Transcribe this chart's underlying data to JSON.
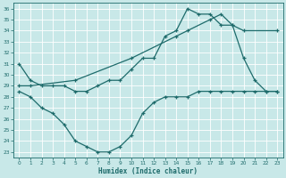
{
  "xlabel": "Humidex (Indice chaleur)",
  "xlim": [
    -0.5,
    23.5
  ],
  "ylim": [
    22.5,
    36.5
  ],
  "yticks": [
    23,
    24,
    25,
    26,
    27,
    28,
    29,
    30,
    31,
    32,
    33,
    34,
    35,
    36
  ],
  "xticks": [
    0,
    1,
    2,
    3,
    4,
    5,
    6,
    7,
    8,
    9,
    10,
    11,
    12,
    13,
    14,
    15,
    16,
    17,
    18,
    19,
    20,
    21,
    22,
    23
  ],
  "bg_color": "#c8e8e8",
  "line_color": "#1e6b6b",
  "grid_color": "#ffffff",
  "line1_x": [
    0,
    1,
    2,
    3,
    4,
    5,
    6,
    7,
    8,
    9,
    10,
    11,
    12,
    13,
    14,
    15,
    16,
    17,
    18,
    19,
    20,
    21,
    22,
    23
  ],
  "line1_y": [
    31.0,
    29.5,
    29.0,
    29.0,
    29.0,
    28.5,
    28.5,
    29.0,
    29.5,
    29.5,
    30.5,
    31.5,
    31.5,
    33.5,
    34.0,
    36.0,
    35.5,
    35.5,
    34.5,
    34.5,
    31.5,
    29.5,
    28.5,
    28.5
  ],
  "line2_x": [
    0,
    1,
    5,
    10,
    14,
    15,
    17,
    18,
    19,
    20,
    23
  ],
  "line2_y": [
    29.0,
    29.0,
    29.5,
    31.5,
    33.5,
    34.0,
    35.0,
    35.5,
    34.5,
    34.0,
    34.0
  ],
  "line3_x": [
    0,
    1,
    2,
    3,
    4,
    5,
    6,
    7,
    8,
    9,
    10,
    11,
    12,
    13,
    14,
    15,
    16,
    17,
    18,
    19,
    20,
    21,
    22,
    23
  ],
  "line3_y": [
    28.5,
    28.0,
    27.0,
    26.5,
    25.5,
    24.0,
    23.5,
    23.0,
    23.0,
    23.5,
    24.5,
    26.5,
    27.5,
    28.0,
    28.0,
    28.0,
    28.5,
    28.5,
    28.5,
    28.5,
    28.5,
    28.5,
    28.5,
    28.5
  ]
}
